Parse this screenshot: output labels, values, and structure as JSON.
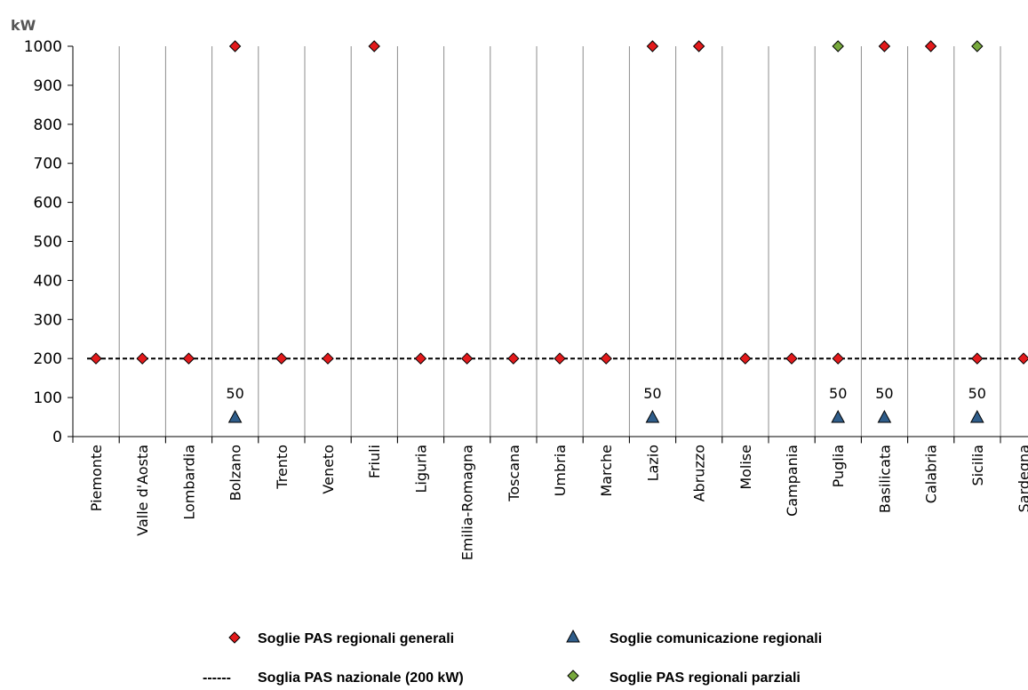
{
  "chart_data": {
    "type": "scatter",
    "y_unit": "kW",
    "ylim": [
      0,
      1000
    ],
    "y_ticks": [
      "0",
      "100",
      "200",
      "300",
      "400",
      "500",
      "600",
      "700",
      "800",
      "900",
      "1000"
    ],
    "categories": [
      "Piemonte",
      "Valle d'Aosta",
      "Lombardia",
      "Bolzano",
      "Trento",
      "Veneto",
      "Friuli",
      "Liguria",
      "Emilia-Romagna",
      "Toscana",
      "Umbria",
      "Marche",
      "Lazio",
      "Abruzzo",
      "Molise",
      "Campania",
      "Puglia",
      "Basilicata",
      "Calabria",
      "Sicilia",
      "Sardegna"
    ],
    "grid": "vertical",
    "legend_position": "bottom",
    "national_threshold": {
      "value": 200,
      "legend_dash": "------",
      "name": "Soglia PAS  nazionale (200 kW)",
      "color": "#000000"
    },
    "series": [
      {
        "name": "Soglie PAS regionali generali",
        "marker": "diamond",
        "color": "#e31a1c",
        "points": [
          {
            "category": "Piemonte",
            "y": 200
          },
          {
            "category": "Valle d'Aosta",
            "y": 200
          },
          {
            "category": "Lombardia",
            "y": 200
          },
          {
            "category": "Bolzano",
            "y": 1000
          },
          {
            "category": "Trento",
            "y": 200
          },
          {
            "category": "Veneto",
            "y": 200
          },
          {
            "category": "Friuli",
            "y": 1000
          },
          {
            "category": "Liguria",
            "y": 200
          },
          {
            "category": "Emilia-Romagna",
            "y": 200
          },
          {
            "category": "Toscana",
            "y": 200
          },
          {
            "category": "Umbria",
            "y": 200
          },
          {
            "category": "Marche",
            "y": 200
          },
          {
            "category": "Lazio",
            "y": 1000
          },
          {
            "category": "Abruzzo",
            "y": 1000
          },
          {
            "category": "Molise",
            "y": 200
          },
          {
            "category": "Campania",
            "y": 200
          },
          {
            "category": "Puglia",
            "y": 200
          },
          {
            "category": "Basilicata",
            "y": 1000
          },
          {
            "category": "Calabria",
            "y": 1000
          },
          {
            "category": "Sicilia",
            "y": 200
          },
          {
            "category": "Sardegna",
            "y": 200
          }
        ]
      },
      {
        "name": "Soglie comunicazione regionali",
        "marker": "triangle",
        "color": "#2f5d8a",
        "points": [
          {
            "category": "Bolzano",
            "y": 50,
            "label": "50"
          },
          {
            "category": "Lazio",
            "y": 50,
            "label": "50"
          },
          {
            "category": "Puglia",
            "y": 50,
            "label": "50"
          },
          {
            "category": "Basilicata",
            "y": 50,
            "label": "50"
          },
          {
            "category": "Sicilia",
            "y": 50,
            "label": "50"
          }
        ]
      },
      {
        "name": "Soglie PAS regionali parziali",
        "marker": "diamond",
        "color": "#77a83c",
        "points": [
          {
            "category": "Puglia",
            "y": 1000
          },
          {
            "category": "Sicilia",
            "y": 1000
          }
        ]
      }
    ]
  }
}
